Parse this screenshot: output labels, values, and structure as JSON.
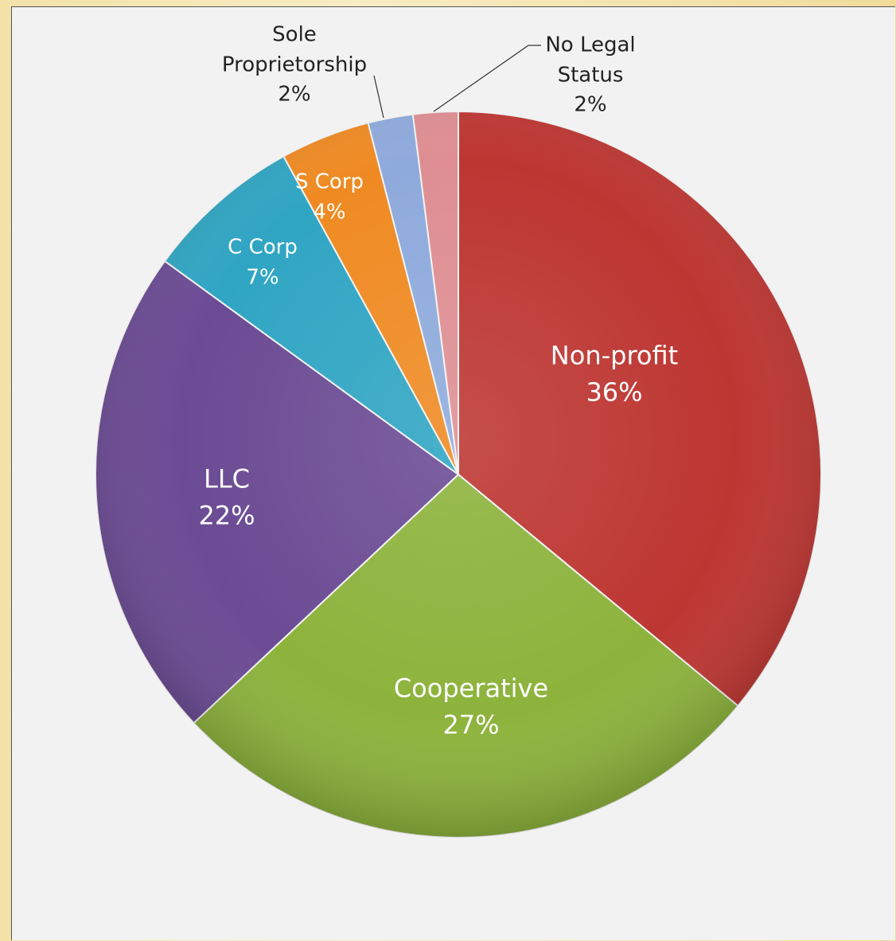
{
  "chart_data": {
    "type": "pie",
    "categories": [
      "Non-profit",
      "Cooperative",
      "LLC",
      "C Corp",
      "S Corp",
      "Sole Proprietorship",
      "No Legal Status"
    ],
    "values": [
      36,
      27,
      22,
      7,
      4,
      2,
      2
    ],
    "value_labels": [
      "36%",
      "27%",
      "22%",
      "7%",
      "4%",
      "2%",
      "2%"
    ],
    "colors": [
      "#bd3632",
      "#8db33c",
      "#6b4b94",
      "#2fa5c3",
      "#ef8a22",
      "#8eaadc",
      "#de8e92"
    ]
  }
}
